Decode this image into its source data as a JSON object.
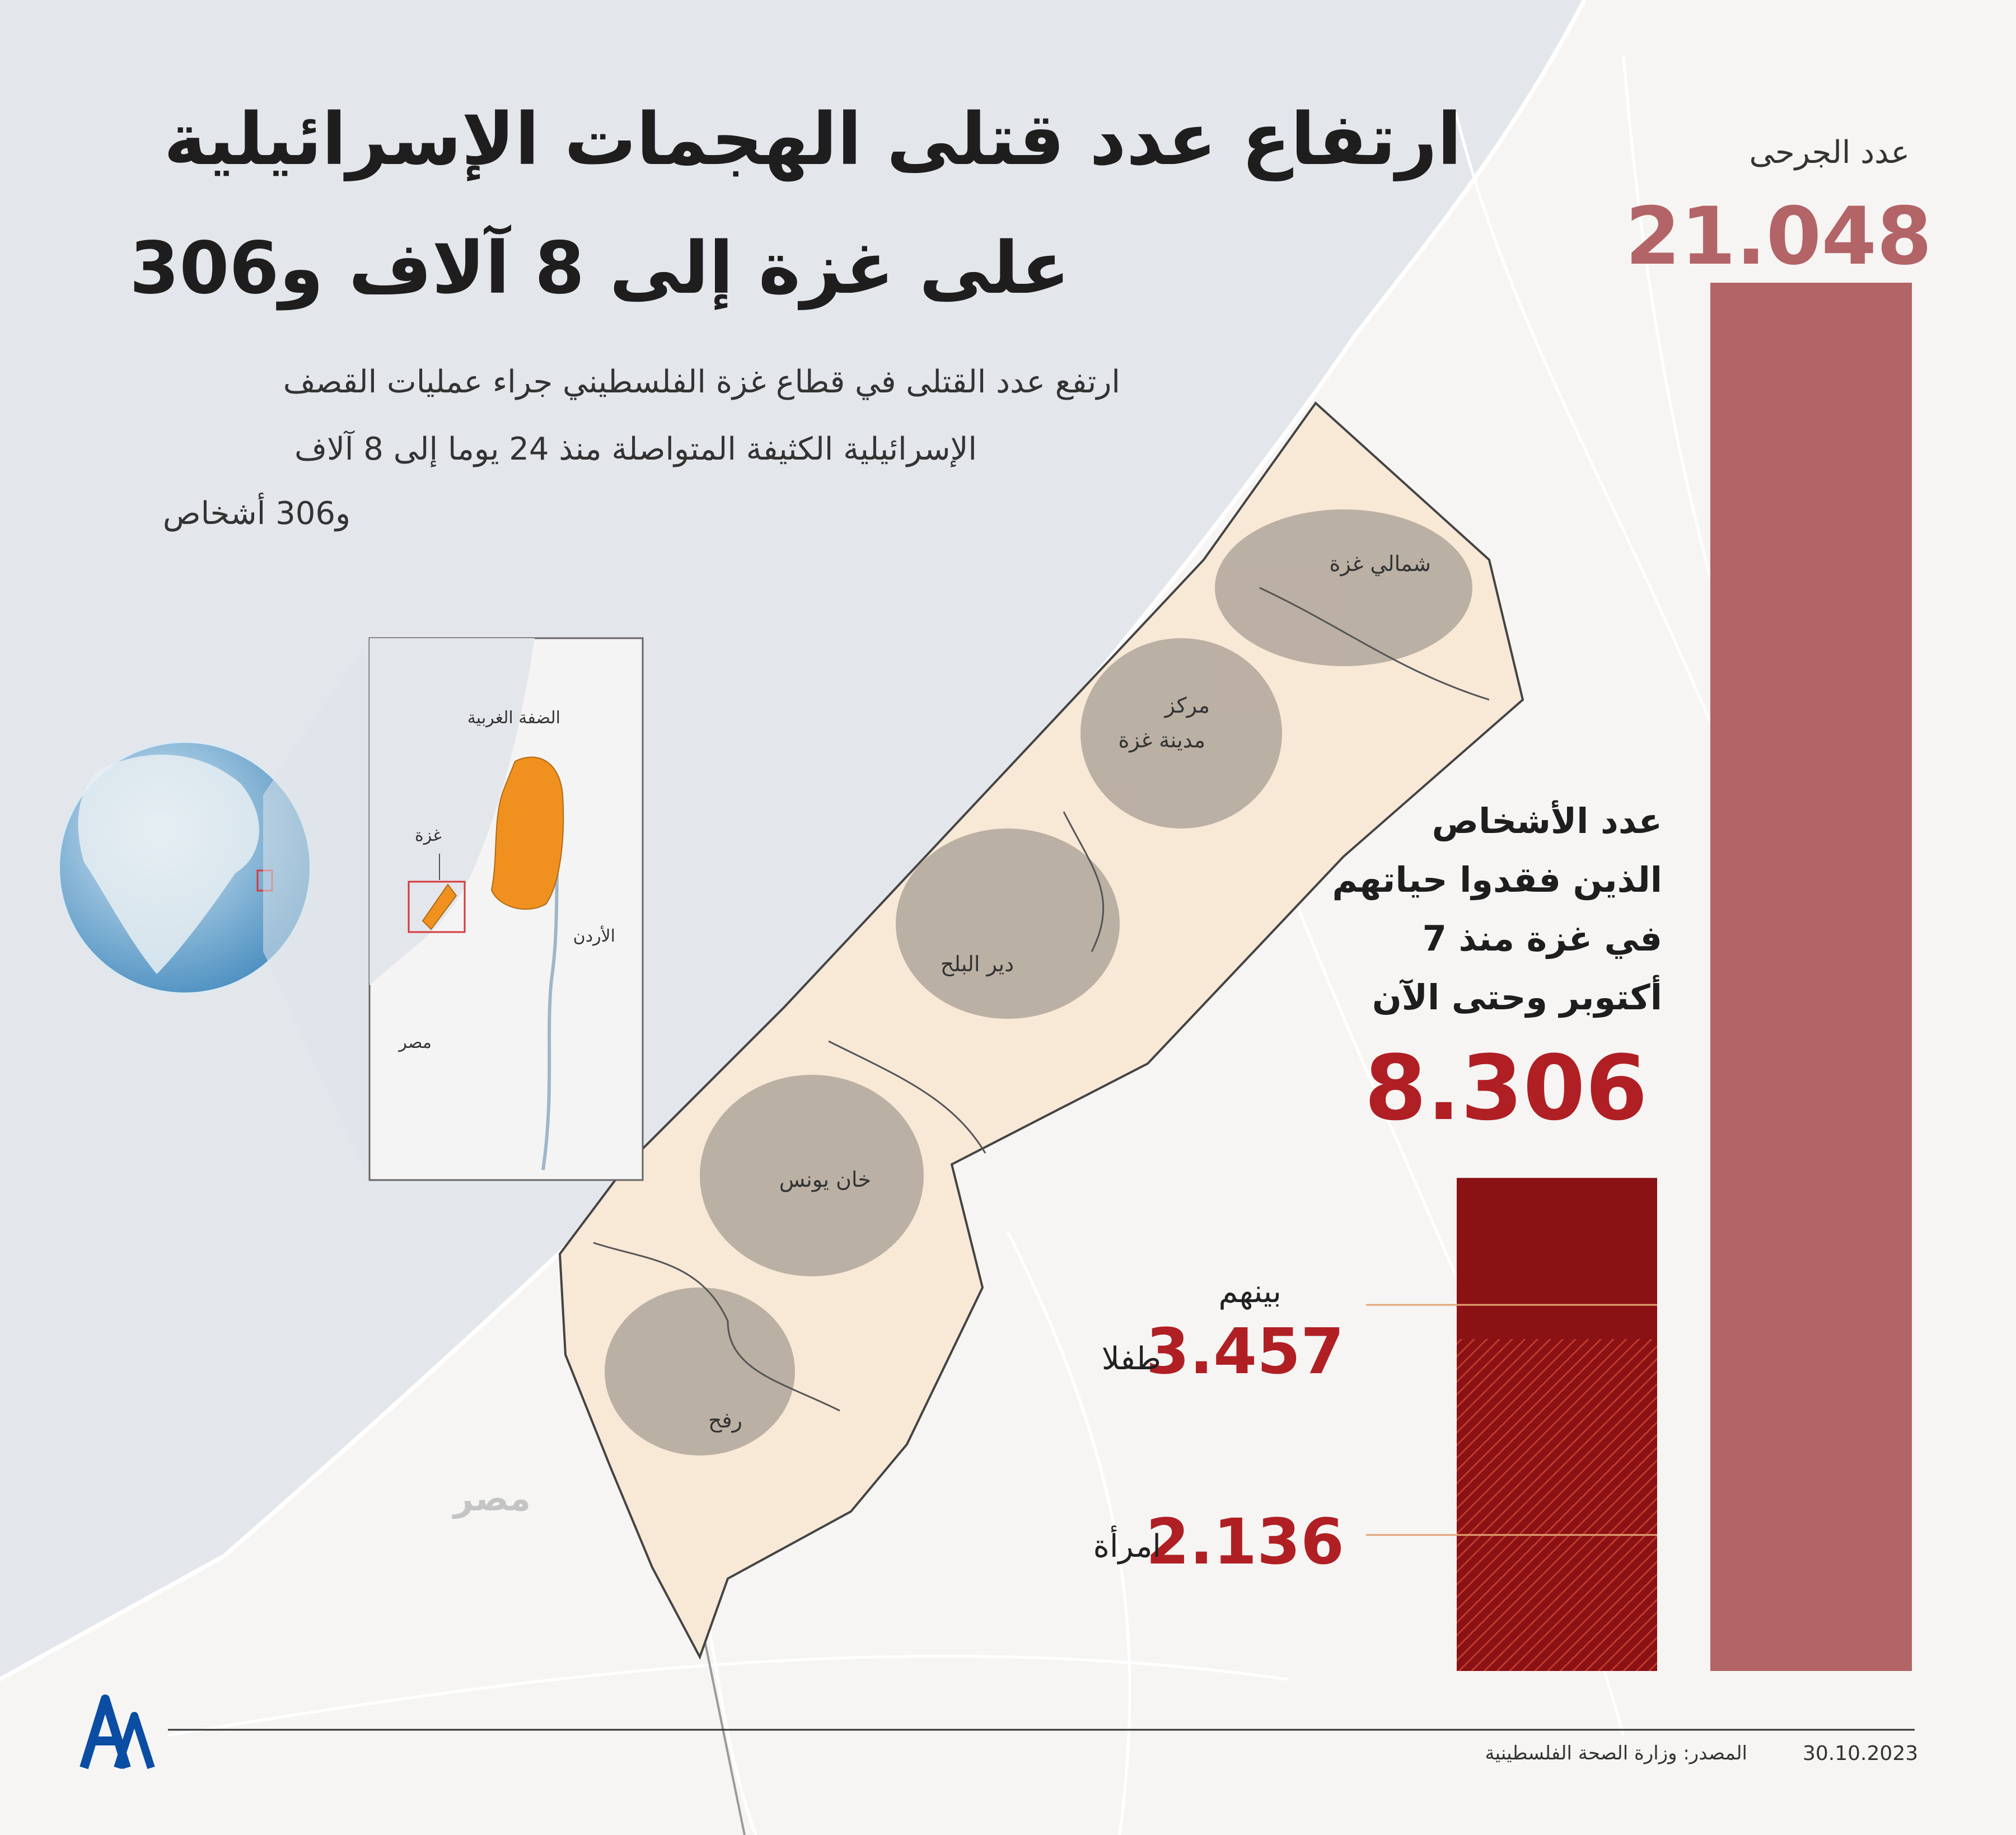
{
  "title": {
    "line1": "ارتفاع عدد قتلى الهجمات الإسرائيلية",
    "line2": "على غزة إلى 8 آلاف و306"
  },
  "subtitle": {
    "line1": "ارتفع عدد القتلى في قطاع غزة الفلسطيني جراء عمليات القصف",
    "line2": "الإسرائيلية الكثيفة المتواصلة منذ 24 يوما إلى 8 آلاف",
    "line3": "و306 أشخاص"
  },
  "map": {
    "regions": {
      "north_gaza": "شمالي غزة",
      "gaza_city_1": "مركز",
      "gaza_city_2": "مدينة غزة",
      "deir_al_balah": "دير البلح",
      "khan_younis": "خان يونس",
      "rafah": "رفح"
    },
    "egypt_label": "مصر",
    "inset": {
      "west_bank": "الضفة الغربية",
      "gaza": "غزة",
      "jordan": "الأردن",
      "egypt": "مصر"
    },
    "colors": {
      "sea": "#e3e6eb",
      "land": "#f6f5f3",
      "gaza_fill": "#f8e8d6",
      "urban": "#a79e93",
      "palestine": "#f0911f",
      "locator": "#d6393c"
    }
  },
  "chart_data": {
    "type": "bar",
    "categories": [
      "عدد الجرحى",
      "عدد الأشخاص الذين فقدوا حياتهم في غزة منذ 7 أكتوبر وحتى الآن"
    ],
    "values": [
      21048,
      8306
    ],
    "breakdown": {
      "label": "بينهم",
      "children": 3457,
      "children_label": "طفلا",
      "women": 2136,
      "women_label": "امرأة"
    },
    "colors": {
      "injured": "#b36466",
      "killed": "#8a1114",
      "hatch": "#c0392b"
    }
  },
  "stats": {
    "injured_label": "عدد الجرحى",
    "injured_value": "21.048",
    "killed_label_1": "عدد الأشخاص",
    "killed_label_2": "الذين فقدوا حياتهم",
    "killed_label_3": "في غزة منذ 7",
    "killed_label_4": "أكتوبر وحتى الآن",
    "killed_value": "8.306",
    "among_label": "بينهم",
    "children_value": "3.457",
    "children_label": "طفلا",
    "women_value": "2.136",
    "women_label": "امرأة"
  },
  "footer": {
    "date": "30.10.2023",
    "source": "المصدر: وزارة الصحة الفلسطينية",
    "logo_text": "AA"
  }
}
